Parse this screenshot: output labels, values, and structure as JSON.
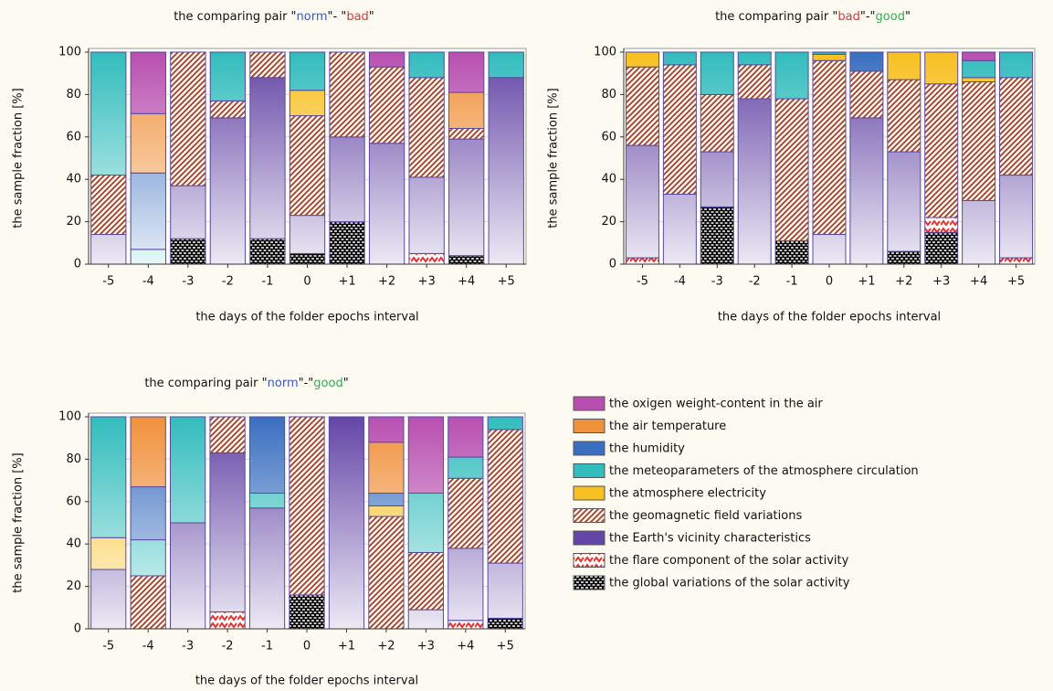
{
  "chart_data": [
    {
      "type": "bar",
      "stacked": true,
      "title": [
        {
          "text": "the comparing pair \""
        },
        {
          "text": "norm",
          "color": "#3b55c8"
        },
        {
          "text": "\"- \""
        },
        {
          "text": "bad",
          "color": "#e83030"
        },
        {
          "text": "\""
        }
      ],
      "xlabel": "the days of the folder epochs interval",
      "ylabel": "the sample fraction [%]",
      "categories": [
        "-5",
        "-4",
        "-3",
        "-2",
        "-1",
        "0",
        "+1",
        "+2",
        "+3",
        "+4",
        "+5"
      ],
      "ylim": [
        0,
        100
      ],
      "yticks": [
        0,
        20,
        40,
        60,
        80,
        100
      ],
      "grid": true,
      "series": [
        {
          "values": [
            0,
            29,
            0,
            0,
            0,
            0,
            0,
            7,
            0,
            19,
            0
          ]
        },
        {
          "values": [
            0,
            28,
            0,
            0,
            0,
            0,
            0,
            0,
            0,
            17,
            0
          ]
        },
        {
          "values": [
            0,
            36,
            0,
            0,
            0,
            0,
            0,
            0,
            0,
            0,
            0
          ]
        },
        {
          "values": [
            58,
            7,
            0,
            23,
            0,
            18,
            0,
            0,
            12,
            0,
            12
          ]
        },
        {
          "values": [
            0,
            0,
            0,
            0,
            0,
            12,
            0,
            0,
            0,
            0,
            0
          ]
        },
        {
          "values": [
            28,
            0,
            63,
            8,
            12,
            47,
            40,
            36,
            47,
            5,
            0
          ]
        },
        {
          "values": [
            14,
            0,
            25,
            69,
            76,
            18,
            40,
            57,
            36,
            55,
            88
          ]
        },
        {
          "values": [
            0,
            0,
            0,
            0,
            0,
            0,
            0,
            0,
            5,
            0,
            0
          ]
        },
        {
          "values": [
            0,
            0,
            12,
            0,
            12,
            5,
            20,
            0,
            0,
            4,
            0
          ]
        }
      ]
    },
    {
      "type": "bar",
      "stacked": true,
      "title": [
        {
          "text": "the comparing pair \""
        },
        {
          "text": "bad",
          "color": "#e83030"
        },
        {
          "text": "\"-\""
        },
        {
          "text": "good",
          "color": "#30b050"
        },
        {
          "text": "\""
        }
      ],
      "xlabel": "the days of the folder epochs interval",
      "ylabel": "the sample fraction [%]",
      "categories": [
        "-5",
        "-4",
        "-3",
        "-2",
        "-1",
        "0",
        "+1",
        "+2",
        "+3",
        "+4",
        "+5"
      ],
      "ylim": [
        0,
        100
      ],
      "yticks": [
        0,
        20,
        40,
        60,
        80,
        100
      ],
      "grid": true,
      "series": [
        {
          "values": [
            0,
            0,
            0,
            0,
            0,
            0,
            0,
            0,
            0,
            4,
            0
          ]
        },
        {
          "values": [
            0,
            0,
            0,
            0,
            0,
            0,
            0,
            0,
            0,
            0,
            0
          ]
        },
        {
          "values": [
            0,
            0,
            0,
            0,
            0,
            0,
            9,
            0,
            0,
            0,
            0
          ]
        },
        {
          "values": [
            0,
            6,
            20,
            6,
            22,
            1,
            0,
            0,
            0,
            8,
            12
          ]
        },
        {
          "values": [
            7,
            0,
            0,
            0,
            0,
            3,
            0,
            13,
            15,
            2,
            0
          ]
        },
        {
          "values": [
            37,
            61,
            27,
            16,
            67,
            82,
            22,
            34,
            63,
            56,
            46
          ]
        },
        {
          "values": [
            53,
            33,
            26,
            78,
            0,
            14,
            69,
            47,
            0,
            30,
            39
          ]
        },
        {
          "values": [
            3,
            0,
            0,
            0,
            0,
            0,
            0,
            0,
            7,
            0,
            3
          ]
        },
        {
          "values": [
            0,
            0,
            27,
            0,
            11,
            0,
            0,
            6,
            15,
            0,
            0
          ]
        }
      ]
    },
    {
      "type": "bar",
      "stacked": true,
      "title": [
        {
          "text": "the comparing pair \""
        },
        {
          "text": "norm",
          "color": "#3b55c8"
        },
        {
          "text": "\"-\""
        },
        {
          "text": "good",
          "color": "#30b050"
        },
        {
          "text": "\""
        }
      ],
      "xlabel": "the days of the folder epochs interval",
      "ylabel": "the sample fraction [%]",
      "categories": [
        "-5",
        "-4",
        "-3",
        "-2",
        "-1",
        "0",
        "+1",
        "+2",
        "+3",
        "+4",
        "+5"
      ],
      "ylim": [
        0,
        100
      ],
      "yticks": [
        0,
        20,
        40,
        60,
        80,
        100
      ],
      "grid": true,
      "series": [
        {
          "values": [
            0,
            0,
            0,
            0,
            0,
            0,
            0,
            12,
            36,
            19,
            0
          ]
        },
        {
          "values": [
            0,
            33,
            0,
            0,
            0,
            0,
            0,
            24,
            0,
            0,
            0
          ]
        },
        {
          "values": [
            0,
            25,
            0,
            0,
            36,
            0,
            0,
            6,
            0,
            0,
            0
          ]
        },
        {
          "values": [
            57,
            17,
            50,
            0,
            7,
            0,
            0,
            0,
            28,
            10,
            6
          ]
        },
        {
          "values": [
            15,
            0,
            0,
            0,
            0,
            0,
            0,
            5,
            0,
            0,
            0
          ]
        },
        {
          "values": [
            0,
            25,
            0,
            17,
            0,
            84,
            0,
            53,
            27,
            33,
            63
          ]
        },
        {
          "values": [
            28,
            0,
            50,
            75,
            57,
            0,
            100,
            0,
            9,
            34,
            26
          ]
        },
        {
          "values": [
            0,
            0,
            0,
            8,
            0,
            0,
            0,
            0,
            0,
            4,
            0
          ]
        },
        {
          "values": [
            0,
            0,
            0,
            0,
            0,
            16,
            0,
            0,
            0,
            0,
            5
          ]
        }
      ]
    }
  ],
  "legend": [
    {
      "name": "the oxigen weight-content in the air",
      "color": "#b84fb0",
      "pattern": "solid"
    },
    {
      "name": "the air temperature",
      "color": "#f0913c",
      "pattern": "solid"
    },
    {
      "name": "the humidity",
      "color": "#3a6fc0",
      "pattern": "solid"
    },
    {
      "name": "the meteoparameters of the atmosphere circulation",
      "color": "#32bcbc",
      "pattern": "solid"
    },
    {
      "name": "the atmosphere electricity",
      "color": "#f8c020",
      "pattern": "solid"
    },
    {
      "name": "the geomagnetic field variations",
      "color": "#a0402c",
      "pattern": "hatch"
    },
    {
      "name": "the Earth's vicinity characteristics",
      "color": "#6446a6",
      "pattern": "solid"
    },
    {
      "name": "the flare component of the solar activity",
      "color": "#e8302c",
      "pattern": "zigzag"
    },
    {
      "name": "the global variations of the solar activity",
      "color": "#000000",
      "pattern": "brick"
    }
  ]
}
